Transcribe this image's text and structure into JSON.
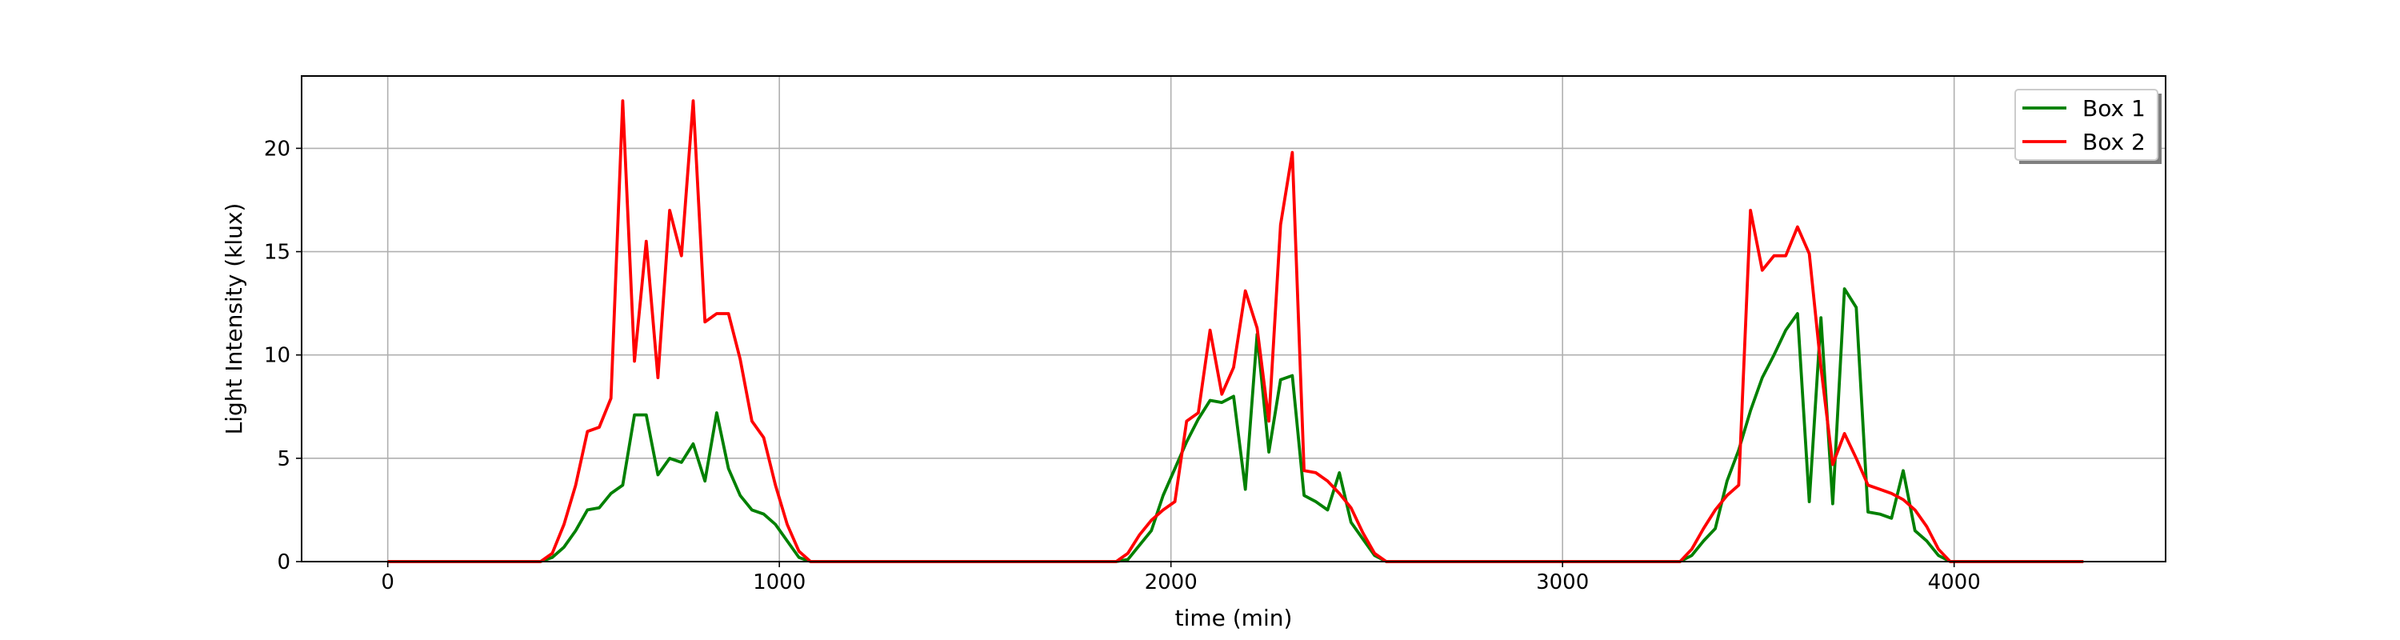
{
  "chart_data": {
    "type": "line",
    "title": "",
    "xlabel": "time (min)",
    "ylabel": "Light Intensity (klux)",
    "xlim": [
      -220,
      4540
    ],
    "ylim": [
      0,
      23.5
    ],
    "xticks": [
      0,
      1000,
      2000,
      3000,
      4000
    ],
    "yticks": [
      0,
      5,
      10,
      15,
      20
    ],
    "grid": true,
    "legend_position": "top-right",
    "series": [
      {
        "name": "Box 1",
        "color": "#008000",
        "points": [
          [
            0,
            0
          ],
          [
            390,
            0
          ],
          [
            420,
            0.2
          ],
          [
            450,
            0.7
          ],
          [
            480,
            1.5
          ],
          [
            510,
            2.5
          ],
          [
            540,
            2.6
          ],
          [
            570,
            3.3
          ],
          [
            600,
            3.7
          ],
          [
            630,
            7.1
          ],
          [
            660,
            7.1
          ],
          [
            690,
            4.2
          ],
          [
            720,
            5.0
          ],
          [
            750,
            4.8
          ],
          [
            780,
            5.7
          ],
          [
            810,
            3.9
          ],
          [
            840,
            7.2
          ],
          [
            870,
            4.5
          ],
          [
            900,
            3.2
          ],
          [
            930,
            2.5
          ],
          [
            960,
            2.3
          ],
          [
            990,
            1.8
          ],
          [
            1020,
            1.0
          ],
          [
            1050,
            0.2
          ],
          [
            1080,
            0
          ],
          [
            1860,
            0
          ],
          [
            1890,
            0.1
          ],
          [
            1920,
            0.8
          ],
          [
            1950,
            1.5
          ],
          [
            1980,
            3.2
          ],
          [
            2010,
            4.5
          ],
          [
            2040,
            5.8
          ],
          [
            2070,
            6.9
          ],
          [
            2100,
            7.8
          ],
          [
            2130,
            7.7
          ],
          [
            2160,
            8.0
          ],
          [
            2190,
            3.5
          ],
          [
            2220,
            11.0
          ],
          [
            2250,
            5.3
          ],
          [
            2280,
            8.8
          ],
          [
            2310,
            9.0
          ],
          [
            2340,
            3.2
          ],
          [
            2370,
            2.9
          ],
          [
            2400,
            2.5
          ],
          [
            2430,
            4.3
          ],
          [
            2460,
            1.9
          ],
          [
            2490,
            1.1
          ],
          [
            2520,
            0.3
          ],
          [
            2550,
            0
          ],
          [
            3300,
            0
          ],
          [
            3330,
            0.3
          ],
          [
            3360,
            1.0
          ],
          [
            3390,
            1.6
          ],
          [
            3420,
            3.9
          ],
          [
            3450,
            5.4
          ],
          [
            3480,
            7.3
          ],
          [
            3510,
            8.9
          ],
          [
            3540,
            10.0
          ],
          [
            3570,
            11.2
          ],
          [
            3600,
            12.0
          ],
          [
            3630,
            2.9
          ],
          [
            3660,
            11.8
          ],
          [
            3690,
            2.8
          ],
          [
            3720,
            13.2
          ],
          [
            3750,
            12.3
          ],
          [
            3780,
            2.4
          ],
          [
            3810,
            2.3
          ],
          [
            3840,
            2.1
          ],
          [
            3870,
            4.4
          ],
          [
            3900,
            1.5
          ],
          [
            3930,
            1.0
          ],
          [
            3960,
            0.3
          ],
          [
            3990,
            0
          ],
          [
            4330,
            0
          ]
        ]
      },
      {
        "name": "Box 2",
        "color": "#ff0000",
        "points": [
          [
            0,
            0
          ],
          [
            390,
            0
          ],
          [
            420,
            0.4
          ],
          [
            450,
            1.8
          ],
          [
            480,
            3.7
          ],
          [
            510,
            6.3
          ],
          [
            540,
            6.5
          ],
          [
            570,
            7.9
          ],
          [
            600,
            22.3
          ],
          [
            630,
            9.7
          ],
          [
            660,
            15.5
          ],
          [
            690,
            8.9
          ],
          [
            720,
            17.0
          ],
          [
            750,
            14.8
          ],
          [
            780,
            22.3
          ],
          [
            810,
            11.6
          ],
          [
            840,
            12.0
          ],
          [
            870,
            12.0
          ],
          [
            900,
            9.8
          ],
          [
            930,
            6.8
          ],
          [
            960,
            6.0
          ],
          [
            990,
            3.7
          ],
          [
            1020,
            1.8
          ],
          [
            1050,
            0.5
          ],
          [
            1080,
            0
          ],
          [
            1860,
            0
          ],
          [
            1890,
            0.4
          ],
          [
            1920,
            1.3
          ],
          [
            1950,
            2.0
          ],
          [
            1980,
            2.5
          ],
          [
            2010,
            2.9
          ],
          [
            2040,
            6.8
          ],
          [
            2070,
            7.2
          ],
          [
            2100,
            11.2
          ],
          [
            2130,
            8.1
          ],
          [
            2160,
            9.4
          ],
          [
            2190,
            13.1
          ],
          [
            2220,
            11.3
          ],
          [
            2250,
            6.8
          ],
          [
            2280,
            16.3
          ],
          [
            2310,
            19.8
          ],
          [
            2340,
            4.4
          ],
          [
            2370,
            4.3
          ],
          [
            2400,
            3.9
          ],
          [
            2430,
            3.3
          ],
          [
            2460,
            2.6
          ],
          [
            2490,
            1.4
          ],
          [
            2520,
            0.4
          ],
          [
            2550,
            0
          ],
          [
            3300,
            0
          ],
          [
            3330,
            0.6
          ],
          [
            3360,
            1.6
          ],
          [
            3390,
            2.5
          ],
          [
            3420,
            3.2
          ],
          [
            3450,
            3.7
          ],
          [
            3480,
            17.0
          ],
          [
            3510,
            14.1
          ],
          [
            3540,
            14.8
          ],
          [
            3570,
            14.8
          ],
          [
            3600,
            16.2
          ],
          [
            3630,
            14.9
          ],
          [
            3660,
            9.4
          ],
          [
            3690,
            4.7
          ],
          [
            3720,
            6.2
          ],
          [
            3750,
            5.0
          ],
          [
            3780,
            3.7
          ],
          [
            3810,
            3.5
          ],
          [
            3840,
            3.3
          ],
          [
            3870,
            3.0
          ],
          [
            3900,
            2.5
          ],
          [
            3930,
            1.7
          ],
          [
            3960,
            0.6
          ],
          [
            3990,
            0
          ],
          [
            4330,
            0
          ]
        ]
      }
    ]
  }
}
